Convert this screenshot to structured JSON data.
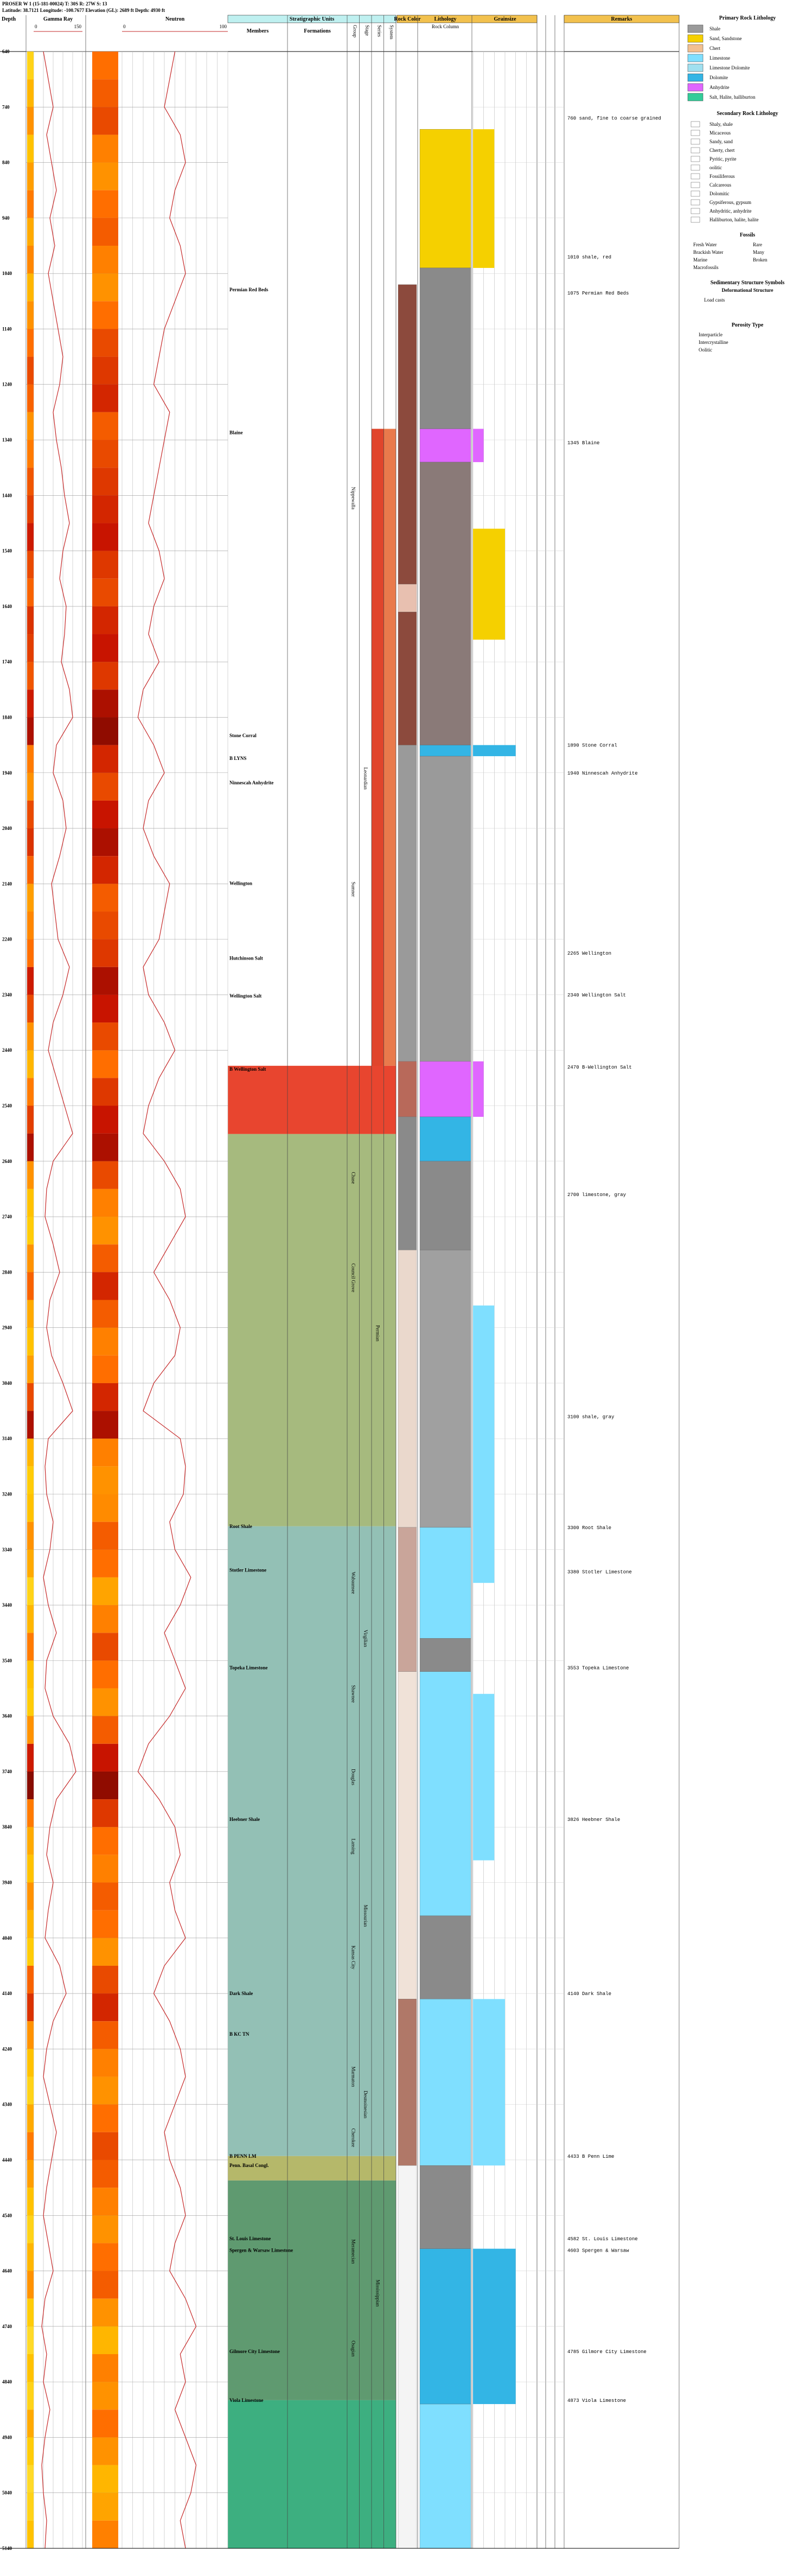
{
  "header": {
    "title": "PROSER W 1 (15-181-00024) T: 30S R: 27W S: 13",
    "location": "Latitude: 38.7121 Longitude: -100.7677 Elevation (GL): 2689 ft Depth: 4930 ft"
  },
  "columns": {
    "depth": "Depth",
    "strat": "Stratigraphic Units",
    "members": "Members",
    "formations": "Formations",
    "rock_color": "Rock Color",
    "lithology": "Lithology",
    "rock_column": "Rock Column",
    "grainsize": "Grainsize",
    "remarks": "Remarks",
    "group_headers": [
      "Group",
      "Stage",
      "Series",
      "System"
    ]
  },
  "depth_lim": [
    640,
    5140
  ],
  "depth_ticks": [
    640,
    740,
    840,
    940,
    1040,
    1140,
    1240,
    1340,
    1440,
    1540,
    1640,
    1740,
    1840,
    1940,
    2040,
    2140,
    2240,
    2340,
    2440,
    2540,
    2640,
    2740,
    2840,
    2940,
    3040,
    3140,
    3240,
    3340,
    3440,
    3540,
    3640,
    3740,
    3840,
    3940,
    4040,
    4140,
    4240,
    4340,
    4440,
    4540,
    4640,
    4740,
    4840,
    4940,
    5040,
    5140
  ],
  "logs": [
    {
      "name": "Gamma Ray",
      "xlim": [
        0,
        150
      ],
      "color": "#c62828",
      "depth_start": 640,
      "depth_step": 50,
      "values": [
        30,
        45,
        60,
        40,
        55,
        70,
        50,
        65,
        45,
        60,
        75,
        90,
        80,
        60,
        70,
        85,
        95,
        110,
        90,
        80,
        100,
        95,
        85,
        110,
        120,
        70,
        60,
        90,
        100,
        80,
        55,
        65,
        75,
        110,
        90,
        60,
        45,
        70,
        95,
        120,
        60,
        40,
        35,
        60,
        80,
        50,
        40,
        55,
        90,
        120,
        45,
        35,
        40,
        60,
        50,
        30,
        45,
        70,
        40,
        35,
        60,
        110,
        130,
        70,
        50,
        40,
        60,
        45,
        35,
        80,
        100,
        60,
        40,
        30,
        50,
        70,
        55,
        40,
        30,
        45,
        60,
        35,
        25,
        40,
        30,
        50,
        35,
        25,
        30,
        40,
        35
      ]
    },
    {
      "name": "Neutron",
      "xlim": [
        0,
        100
      ],
      "color": "#c62828",
      "depth_start": 640,
      "depth_step": 50,
      "values": [
        50,
        45,
        40,
        55,
        60,
        50,
        45,
        55,
        60,
        50,
        40,
        35,
        30,
        45,
        40,
        35,
        30,
        25,
        35,
        40,
        30,
        25,
        35,
        20,
        15,
        30,
        40,
        25,
        20,
        30,
        45,
        40,
        35,
        20,
        25,
        40,
        50,
        35,
        25,
        20,
        40,
        55,
        60,
        45,
        30,
        45,
        55,
        50,
        30,
        20,
        55,
        60,
        58,
        45,
        50,
        65,
        55,
        40,
        50,
        60,
        45,
        25,
        15,
        35,
        50,
        55,
        45,
        50,
        60,
        40,
        30,
        45,
        55,
        60,
        50,
        40,
        45,
        55,
        60,
        50,
        45,
        60,
        70,
        55,
        60,
        50,
        60,
        70,
        65,
        55,
        60
      ]
    }
  ],
  "units": [
    {
      "top": 1320,
      "bottom": 2468,
      "color": "#e97a4c",
      "col": 3
    },
    {
      "top": 1320,
      "bottom": 2591,
      "color": "#e0452c",
      "col": 2
    },
    {
      "top": 2468,
      "bottom": 2591,
      "color": "#e8452f",
      "col": -1
    },
    {
      "top": 2591,
      "bottom": 3298,
      "color": "#a6ba7e",
      "col": -1
    },
    {
      "top": 3298,
      "bottom": 4433,
      "color": "#93c0b5",
      "col": -1
    },
    {
      "top": 4433,
      "bottom": 4477,
      "color": "#b5b86a",
      "col": -1
    },
    {
      "top": 4477,
      "bottom": 4873,
      "color": "#5f9a70",
      "col": -1
    },
    {
      "top": 4873,
      "bottom": 5140,
      "color": "#3daf80",
      "col": -1
    }
  ],
  "members": [
    {
      "name": "Permian Red Beds",
      "depth": 1069
    },
    {
      "name": "Blaine",
      "depth": 1327
    },
    {
      "name": "Stone Corral",
      "depth": 1873
    },
    {
      "name": "B LYNS",
      "depth": 1914
    },
    {
      "name": "Ninnescah Anhydrite",
      "depth": 1958
    },
    {
      "name": "Wellington",
      "depth": 2139
    },
    {
      "name": "Hutchinson Salt",
      "depth": 2274
    },
    {
      "name": "Wellington Salt",
      "depth": 2342
    },
    {
      "name": "B Wellington Salt",
      "depth": 2474
    },
    {
      "name": "Root Shale",
      "depth": 3298
    },
    {
      "name": "Stotler Limestone",
      "depth": 3377
    },
    {
      "name": "Topeka Limestone",
      "depth": 3553
    },
    {
      "name": "Heebner Shale",
      "depth": 3826
    },
    {
      "name": "Dark Shale",
      "depth": 4140
    },
    {
      "name": "B KC TN",
      "depth": 4213
    },
    {
      "name": "B PENN LM",
      "depth": 4433
    },
    {
      "name": "Penn. Basal Congl.",
      "depth": 4450
    },
    {
      "name": "St. Louis Limestone",
      "depth": 4582
    },
    {
      "name": "Spergen & Warsaw Limestone",
      "depth": 4603
    },
    {
      "name": "Gilmore City Limestone",
      "depth": 4785
    },
    {
      "name": "Viola Limestone",
      "depth": 4873
    }
  ],
  "groups": [
    {
      "name": "Nippewalla",
      "top": 1330,
      "bottom": 1560,
      "col": 0
    },
    {
      "name": "Sumner",
      "top": 2050,
      "bottom": 2250,
      "col": 0
    },
    {
      "name": "Leonardian",
      "top": 1800,
      "bottom": 2100,
      "col": 1
    },
    {
      "name": "Chase",
      "top": 2620,
      "bottom": 2720,
      "col": 0
    },
    {
      "name": "Council Grove",
      "top": 2740,
      "bottom": 2960,
      "col": 0
    },
    {
      "name": "Wabaunsee",
      "top": 3300,
      "bottom": 3500,
      "col": 0
    },
    {
      "name": "Shawnee",
      "top": 3520,
      "bottom": 3680,
      "col": 0
    },
    {
      "name": "Douglas",
      "top": 3700,
      "bottom": 3800,
      "col": 0
    },
    {
      "name": "Lansing",
      "top": 3800,
      "bottom": 3950,
      "col": 0
    },
    {
      "name": "Kansas City",
      "top": 3950,
      "bottom": 4200,
      "col": 0
    },
    {
      "name": "Marmaton",
      "top": 4230,
      "bottom": 4350,
      "col": 0
    },
    {
      "name": "Cherokee",
      "top": 4350,
      "bottom": 4450,
      "col": 0
    },
    {
      "name": "Meramecian",
      "top": 4530,
      "bottom": 4680,
      "col": 0
    },
    {
      "name": "Osagian",
      "top": 4700,
      "bottom": 4860,
      "col": 0
    },
    {
      "name": "Virgilian",
      "top": 3300,
      "bottom": 3700,
      "col": 1
    },
    {
      "name": "Missourian",
      "top": 3800,
      "bottom": 4200,
      "col": 1
    },
    {
      "name": "Desmoinesian",
      "top": 4230,
      "bottom": 4450,
      "col": 1
    },
    {
      "name": "Permian",
      "top": 2800,
      "bottom": 3100,
      "col": 2
    },
    {
      "name": "Mississippian",
      "top": 4500,
      "bottom": 4860,
      "col": 2
    }
  ],
  "rock_color": [
    {
      "top": 1060,
      "bottom": 1600,
      "color": "#8c4a3d"
    },
    {
      "top": 1600,
      "bottom": 1650,
      "color": "#e8c0b0"
    },
    {
      "top": 1650,
      "bottom": 1890,
      "color": "#8c4a3d"
    },
    {
      "top": 1890,
      "bottom": 2460,
      "color": "#9a9a9a"
    },
    {
      "top": 2460,
      "bottom": 2560,
      "color": "#b8695a"
    },
    {
      "top": 2560,
      "bottom": 2800,
      "color": "#8a8a8a"
    },
    {
      "top": 2800,
      "bottom": 3300,
      "color": "#ead8cc"
    },
    {
      "top": 3300,
      "bottom": 3560,
      "color": "#c9a59a"
    },
    {
      "top": 3560,
      "bottom": 4150,
      "color": "#f0e2d8"
    },
    {
      "top": 4150,
      "bottom": 4450,
      "color": "#b07868"
    },
    {
      "top": 4450,
      "bottom": 5140,
      "color": "#f4f4f4"
    }
  ],
  "lithology": [
    {
      "top": 780,
      "bottom": 1030,
      "color": "#f5d000"
    },
    {
      "top": 1030,
      "bottom": 1320,
      "color": "#8a8a8a"
    },
    {
      "top": 1320,
      "bottom": 1380,
      "color": "#e066ff"
    },
    {
      "top": 1380,
      "bottom": 1890,
      "color": "#8a7a78"
    },
    {
      "top": 1890,
      "bottom": 1910,
      "color": "#33b5e5"
    },
    {
      "top": 1910,
      "bottom": 2460,
      "color": "#9a9a9a"
    },
    {
      "top": 2460,
      "bottom": 2560,
      "color": "#e066ff"
    },
    {
      "top": 2560,
      "bottom": 2640,
      "color": "#33b5e5"
    },
    {
      "top": 2640,
      "bottom": 2800,
      "color": "#8a8a8a"
    },
    {
      "top": 2800,
      "bottom": 3300,
      "color": "#a0a0a0"
    },
    {
      "top": 3300,
      "bottom": 3500,
      "color": "#7fdfff"
    },
    {
      "top": 3500,
      "bottom": 3560,
      "color": "#8a8a8a"
    },
    {
      "top": 3560,
      "bottom": 4000,
      "color": "#7fdfff"
    },
    {
      "top": 4000,
      "bottom": 4150,
      "color": "#8a8a8a"
    },
    {
      "top": 4150,
      "bottom": 4450,
      "color": "#7fdfff"
    },
    {
      "top": 4450,
      "bottom": 4600,
      "color": "#8a8a8a"
    },
    {
      "top": 4600,
      "bottom": 4880,
      "color": "#33b5e5"
    },
    {
      "top": 4880,
      "bottom": 5140,
      "color": "#7fdfff"
    }
  ],
  "grainsize": [
    {
      "top": 780,
      "bottom": 1030,
      "size": 2,
      "color": "#f5d000"
    },
    {
      "top": 1320,
      "bottom": 1380,
      "size": 1,
      "color": "#e066ff"
    },
    {
      "top": 1500,
      "bottom": 1700,
      "size": 3,
      "color": "#f5d000"
    },
    {
      "top": 1890,
      "bottom": 1910,
      "size": 4,
      "color": "#33b5e5"
    },
    {
      "top": 2460,
      "bottom": 2560,
      "size": 1,
      "color": "#e066ff"
    },
    {
      "top": 2900,
      "bottom": 3400,
      "size": 2,
      "color": "#7fdfff"
    },
    {
      "top": 3600,
      "bottom": 3900,
      "size": 2,
      "color": "#7fdfff"
    },
    {
      "top": 4150,
      "bottom": 4450,
      "size": 3,
      "color": "#7fdfff"
    },
    {
      "top": 4600,
      "bottom": 4880,
      "size": 4,
      "color": "#33b5e5"
    }
  ],
  "remarks": [
    {
      "depth": 760,
      "text": "760 sand, fine to coarse grained"
    },
    {
      "depth": 1010,
      "text": "1010 shale, red"
    },
    {
      "depth": 1075,
      "text": "1075 Permian Red Beds"
    },
    {
      "depth": 1345,
      "text": "1345 Blaine"
    },
    {
      "depth": 1890,
      "text": "1890 Stone Corral"
    },
    {
      "depth": 1940,
      "text": "1940 Ninnescah Anhydrite"
    },
    {
      "depth": 2265,
      "text": "2265 Wellington"
    },
    {
      "depth": 2340,
      "text": "2340 Wellington Salt"
    },
    {
      "depth": 2470,
      "text": "2470 B-Wellington Salt"
    },
    {
      "depth": 2700,
      "text": "2700 limestone, gray"
    },
    {
      "depth": 3100,
      "text": "3100 shale, gray"
    },
    {
      "depth": 3300,
      "text": "3300 Root Shale"
    },
    {
      "depth": 3380,
      "text": "3380 Stotler Limestone"
    },
    {
      "depth": 3553,
      "text": "3553 Topeka Limestone"
    },
    {
      "depth": 3826,
      "text": "3826 Heebner Shale"
    },
    {
      "depth": 4140,
      "text": "4140 Dark Shale"
    },
    {
      "depth": 4433,
      "text": "4433 B Penn Lime"
    },
    {
      "depth": 4582,
      "text": "4582 St. Louis Limestone"
    },
    {
      "depth": 4603,
      "text": "4603 Spergen & Warsaw"
    },
    {
      "depth": 4785,
      "text": "4785 Gilmore City Limestone"
    },
    {
      "depth": 4873,
      "text": "4873 Viola Limestone"
    }
  ],
  "legend": {
    "primary_title": "Primary Rock Lithology",
    "primary": [
      {
        "name": "Shale",
        "color": "#9a9a9a"
      },
      {
        "name": "Sand, Sandstone",
        "color": "#f5d000"
      },
      {
        "name": "Chert",
        "color": "#f2c090"
      },
      {
        "name": "Limestone",
        "color": "#7fdfff"
      },
      {
        "name": "Limestone Dolomite",
        "color": "#a0e0f0"
      },
      {
        "name": "Dolomite",
        "color": "#33b5e5"
      },
      {
        "name": "Anhydrite",
        "color": "#e066ff"
      },
      {
        "name": "Salt, Halite, halliburton",
        "color": "#33cc99"
      }
    ],
    "secondary_title": "Secondary Rock Lithology",
    "secondary": [
      "Shaly, shale",
      "Micaceous",
      "Sandy, sand",
      "Cherty, chert",
      "Pyritic, pyrite",
      "oolitic",
      "Fossiliferous",
      "Calcareous",
      "Dolomitic",
      "Gypsiferous, gypsum",
      "Anhydritic, anhydrite",
      "Halliburton, halite, halite"
    ],
    "fossils_title": "Fossils",
    "fossils": [
      "Fresh Water",
      "Rare",
      "Brackish Water",
      "Many",
      "Marine",
      "Broken",
      "Macrofossils"
    ],
    "sed_title": "Sedimentary Structure Symbols",
    "deform_title": "Deformational Structure",
    "deform": [
      "Load casts"
    ],
    "porosity_title": "Porosity Type",
    "porosity": [
      "Interparticle",
      "Intercrystalline",
      "Oolitic"
    ]
  }
}
